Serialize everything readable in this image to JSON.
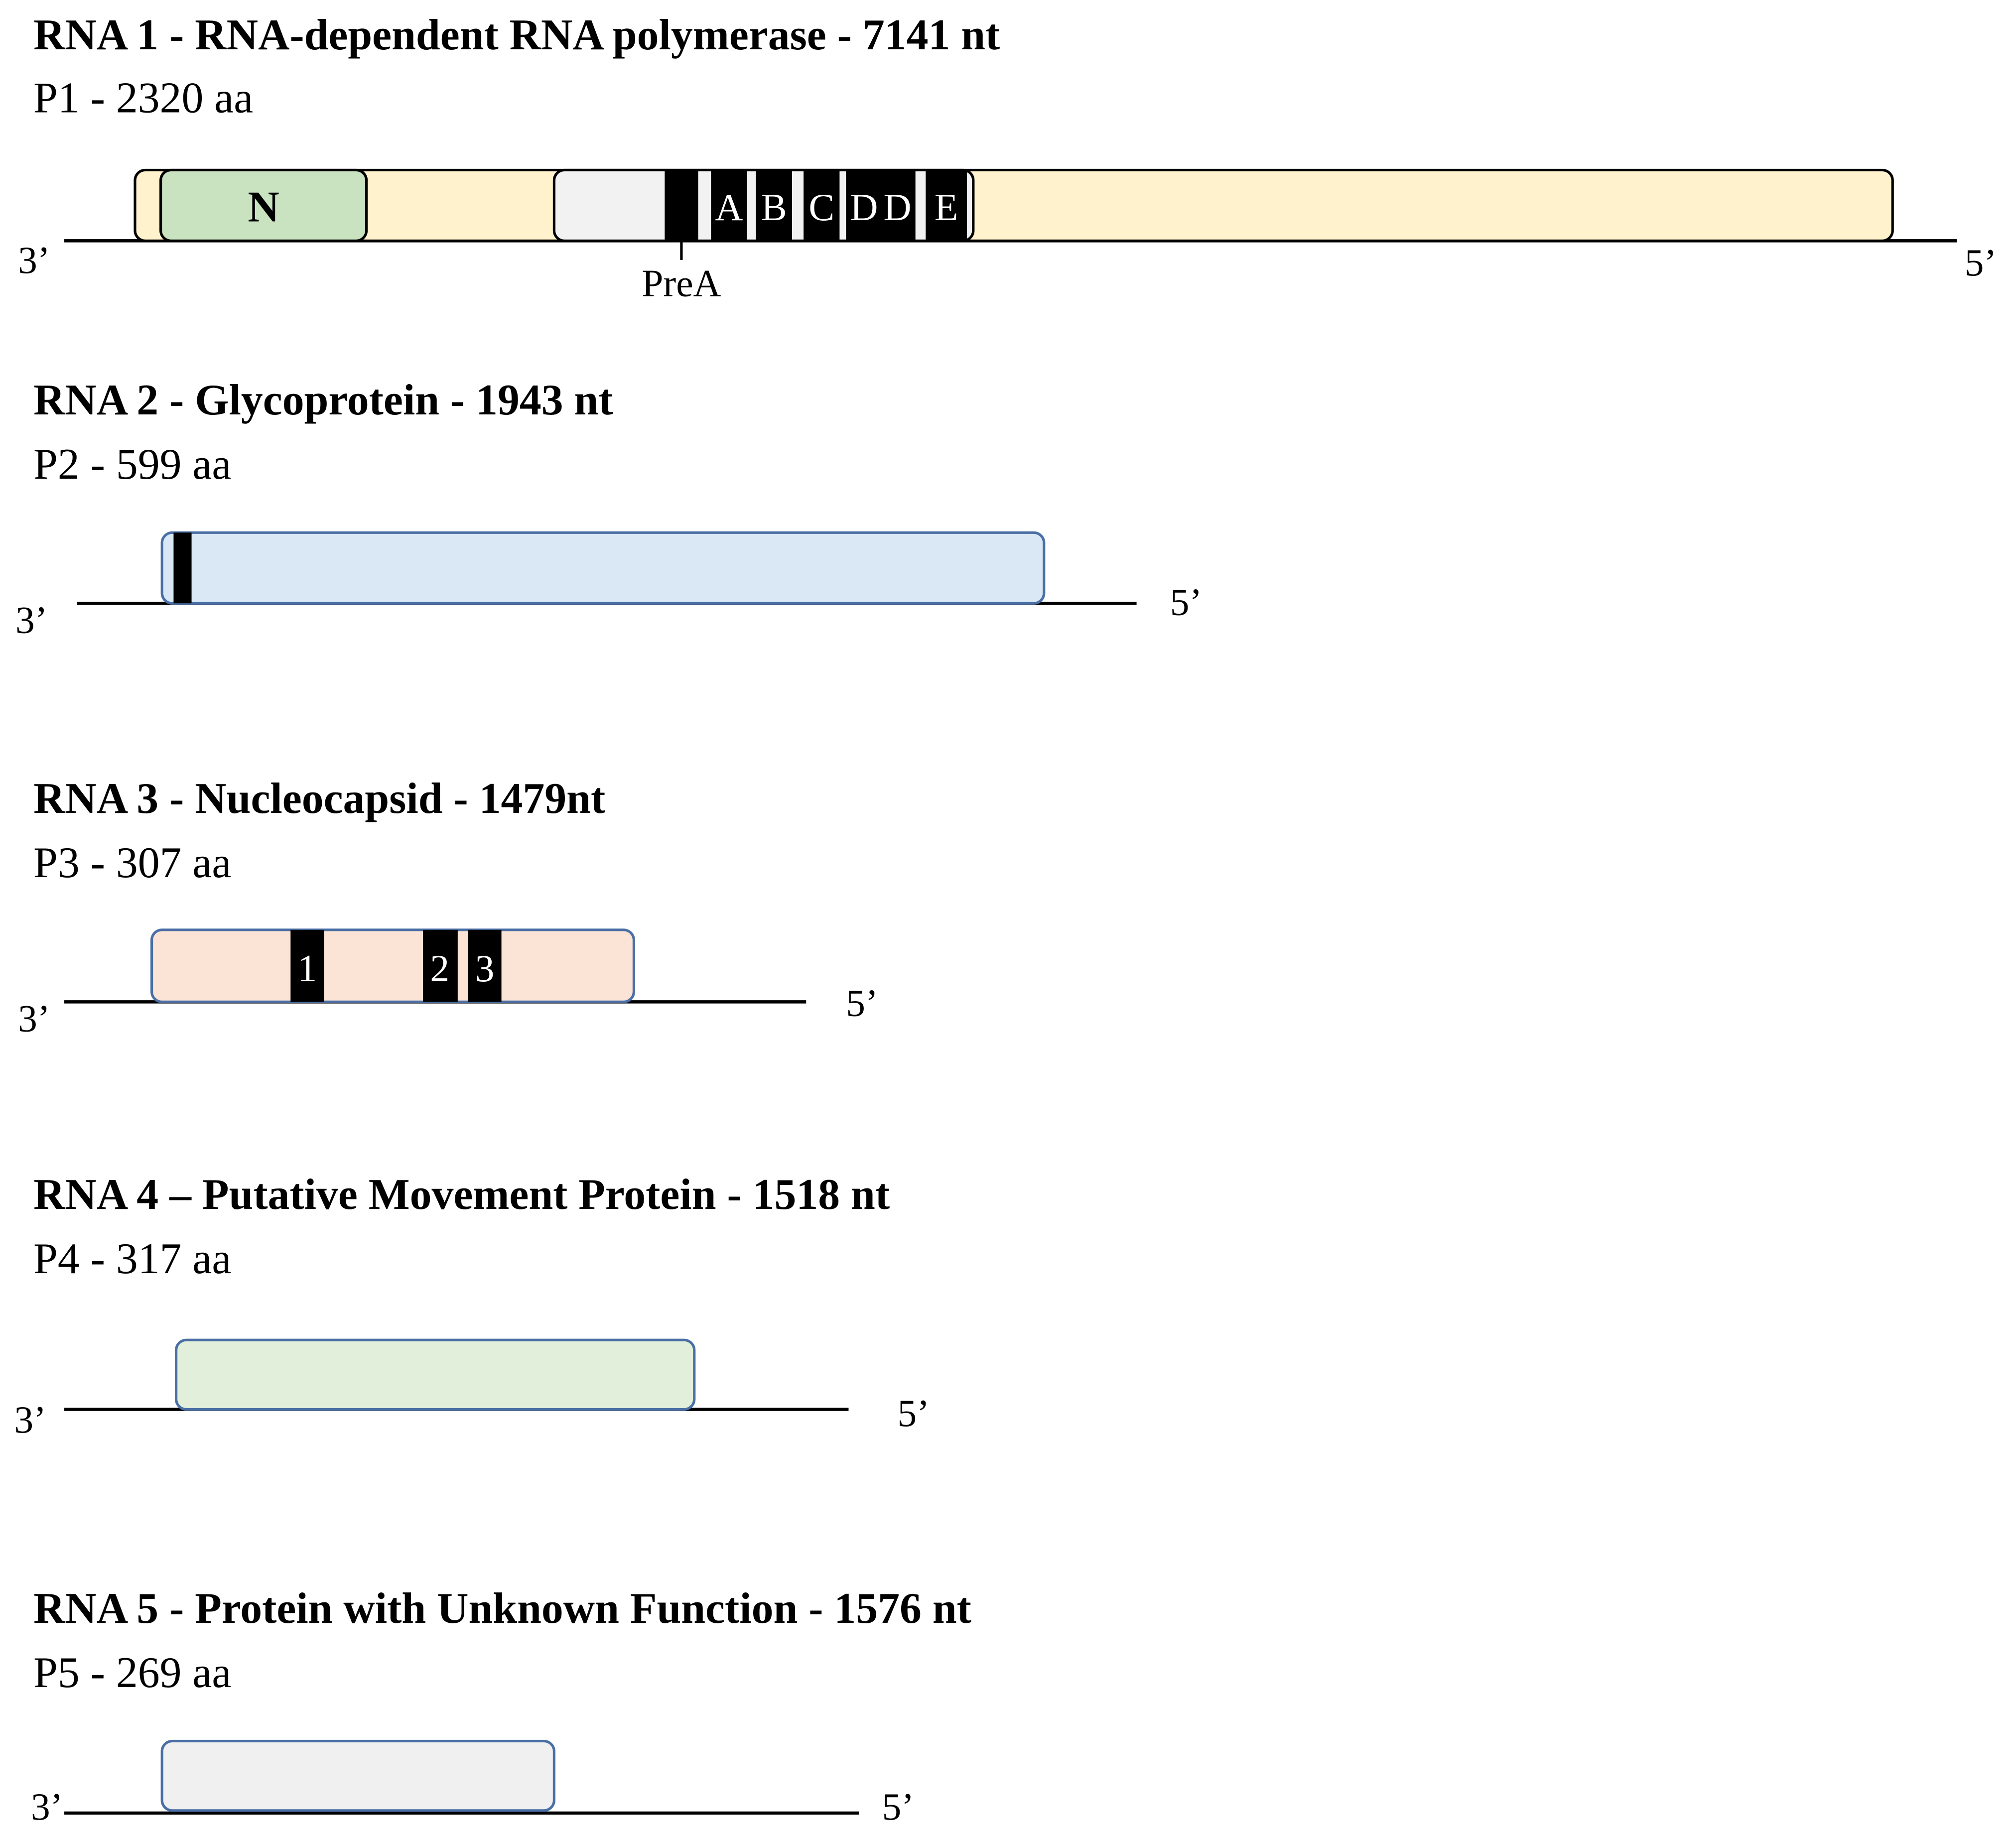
{
  "segments": [
    {
      "title": "RNA 1 - RNA-dependent RNA polymerase - 7141 nt",
      "protein": "P1 - 2320 aa",
      "end3": "3’",
      "end5": "5’",
      "domain": "N",
      "motifs": [
        "A",
        "B",
        "C",
        "D",
        "D",
        "E"
      ],
      "premotif": "PreA"
    },
    {
      "title": "RNA 2 - Glycoprotein - 1943 nt",
      "protein": "P2 - 599 aa",
      "end3": "3’",
      "end5": "5’"
    },
    {
      "title": "RNA 3 - Nucleocapsid - 1479nt",
      "protein": "P3 - 307 aa",
      "end3": "3’",
      "end5": "5’",
      "motifs": [
        "1",
        "2",
        "3"
      ]
    },
    {
      "title": "RNA 4 – Putative Movement Protein - 1518 nt",
      "protein": "P4 - 317 aa",
      "end3": "3’",
      "end5": "5’"
    },
    {
      "title": "RNA 5 - Protein with Unknown Function - 1576 nt",
      "protein": "P5 - 269 aa",
      "end3": "3’",
      "end5": "5’"
    }
  ]
}
